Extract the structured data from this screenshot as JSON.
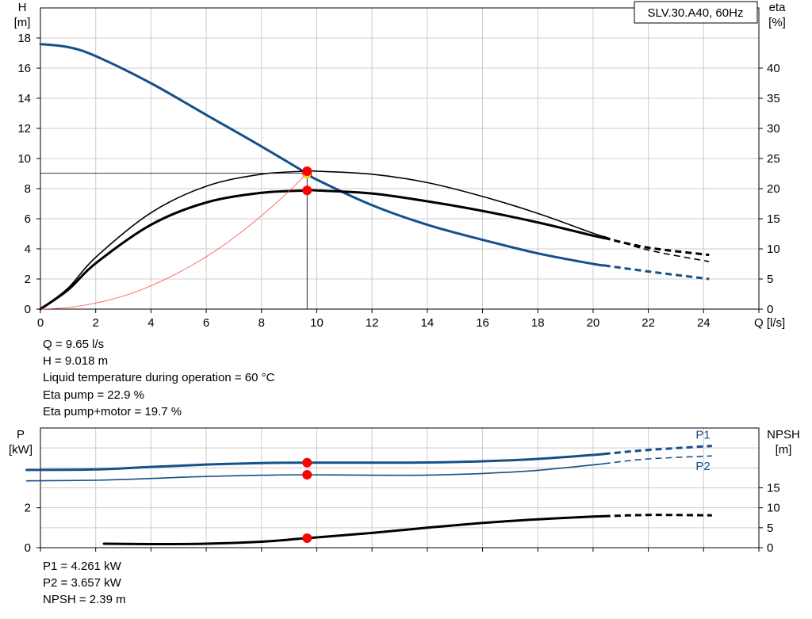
{
  "chart_data": [
    {
      "type": "line",
      "id": "performance",
      "legend": "SLV.30.A40, 60Hz",
      "xlabel": "Q [l/s]",
      "ylabel": [
        "H",
        "[m]"
      ],
      "y2label": [
        "eta",
        "[%]"
      ],
      "xlim": [
        0,
        26
      ],
      "ylim": [
        0,
        20
      ],
      "y2lim": [
        0,
        50
      ],
      "xticks": [
        0,
        2,
        4,
        6,
        8,
        10,
        12,
        14,
        16,
        18,
        20,
        22,
        24
      ],
      "yticks": [
        0,
        2,
        4,
        6,
        8,
        10,
        12,
        14,
        16,
        18
      ],
      "y2ticks": [
        0,
        5,
        10,
        15,
        20,
        25,
        30,
        35,
        40
      ],
      "grid": true,
      "series": [
        {
          "axis": "left",
          "color": "#15508a",
          "width": 3,
          "dash_from": 20.4,
          "points": [
            [
              0,
              17.6
            ],
            [
              1,
              17.4
            ],
            [
              2,
              16.8
            ],
            [
              4,
              15.0
            ],
            [
              6,
              12.9
            ],
            [
              8,
              10.8
            ],
            [
              9.65,
              9.0
            ],
            [
              10,
              8.6
            ],
            [
              12,
              6.9
            ],
            [
              14,
              5.6
            ],
            [
              16,
              4.6
            ],
            [
              18,
              3.7
            ],
            [
              20,
              3.0
            ],
            [
              22,
              2.5
            ],
            [
              24.2,
              2.0
            ]
          ]
        },
        {
          "axis": "right",
          "color": "#000000",
          "width": 1.6,
          "dash_from": 20.4,
          "points": [
            [
              0,
              0
            ],
            [
              1,
              3.5
            ],
            [
              2,
              8.6
            ],
            [
              4,
              16.0
            ],
            [
              6,
              20.4
            ],
            [
              8,
              22.4
            ],
            [
              9.65,
              22.9
            ],
            [
              10,
              22.9
            ],
            [
              12,
              22.4
            ],
            [
              14,
              21.0
            ],
            [
              16,
              18.7
            ],
            [
              18,
              15.9
            ],
            [
              20,
              12.6
            ],
            [
              22,
              9.8
            ],
            [
              24.2,
              7.9
            ]
          ]
        },
        {
          "axis": "right",
          "color": "#000000",
          "width": 3,
          "dash_from": 20.4,
          "points": [
            [
              0,
              0
            ],
            [
              1,
              3.2
            ],
            [
              2,
              7.6
            ],
            [
              4,
              14.0
            ],
            [
              6,
              17.7
            ],
            [
              8,
              19.3
            ],
            [
              9.65,
              19.7
            ],
            [
              10,
              19.7
            ],
            [
              12,
              19.2
            ],
            [
              14,
              17.9
            ],
            [
              16,
              16.3
            ],
            [
              18,
              14.4
            ],
            [
              20,
              12.2
            ],
            [
              22,
              10.2
            ],
            [
              24.2,
              9.0
            ]
          ]
        },
        {
          "axis": "left",
          "color": "#ff4a4a",
          "width": 0.8,
          "dash_from": null,
          "points": [
            [
              0,
              0
            ],
            [
              1,
              0.1
            ],
            [
              2,
              0.4
            ],
            [
              3,
              0.87
            ],
            [
              4,
              1.55
            ],
            [
              5,
              2.42
            ],
            [
              6,
              3.48
            ],
            [
              7,
              4.74
            ],
            [
              8,
              6.2
            ],
            [
              9,
              7.84
            ],
            [
              9.65,
              9.018
            ]
          ]
        }
      ],
      "guide_point": {
        "x": 9.65,
        "y": 9.018
      },
      "markers": [
        {
          "axis": "left",
          "x": 9.65,
          "y": 9.018
        },
        {
          "axis": "left",
          "x": 9.65,
          "y": 9.05
        },
        {
          "axis": "right",
          "x": 9.65,
          "y": 22.9
        },
        {
          "axis": "right",
          "x": 9.65,
          "y": 19.7
        }
      ]
    },
    {
      "type": "line",
      "id": "power",
      "ylabel": [
        "P",
        "[kW]"
      ],
      "y2label": [
        "NPSH",
        "[m]"
      ],
      "xlim": [
        0,
        26
      ],
      "ylim": [
        0,
        6
      ],
      "y2lim": [
        0,
        30
      ],
      "yticks": [
        0,
        2
      ],
      "y2ticks": [
        0,
        5,
        10,
        15
      ],
      "grid": true,
      "series": [
        {
          "name": "P1",
          "axis": "left",
          "color": "#15508a",
          "width": 3,
          "dash_from": 20.4,
          "points": [
            [
              -0.5,
              3.9
            ],
            [
              2,
              3.92
            ],
            [
              4,
              4.05
            ],
            [
              6,
              4.17
            ],
            [
              8,
              4.24
            ],
            [
              9.65,
              4.261
            ],
            [
              12,
              4.26
            ],
            [
              14,
              4.27
            ],
            [
              16,
              4.33
            ],
            [
              18,
              4.45
            ],
            [
              20,
              4.65
            ],
            [
              22,
              4.9
            ],
            [
              24.3,
              5.1
            ]
          ]
        },
        {
          "name": "P2",
          "axis": "left",
          "color": "#15508a",
          "width": 1.6,
          "dash_from": 20.4,
          "points": [
            [
              -0.5,
              3.35
            ],
            [
              2,
              3.38
            ],
            [
              4,
              3.47
            ],
            [
              6,
              3.57
            ],
            [
              8,
              3.63
            ],
            [
              9.65,
              3.657
            ],
            [
              12,
              3.63
            ],
            [
              14,
              3.64
            ],
            [
              16,
              3.72
            ],
            [
              18,
              3.88
            ],
            [
              20,
              4.15
            ],
            [
              22,
              4.45
            ],
            [
              24.3,
              4.6
            ]
          ]
        },
        {
          "name": "NPSH",
          "axis": "right",
          "color": "#000000",
          "width": 3,
          "dash_from": 20.4,
          "points": [
            [
              2.3,
              1.0
            ],
            [
              4,
              0.9
            ],
            [
              6,
              1.0
            ],
            [
              8,
              1.5
            ],
            [
              9.65,
              2.39
            ],
            [
              12,
              3.7
            ],
            [
              14,
              5.0
            ],
            [
              16,
              6.2
            ],
            [
              18,
              7.1
            ],
            [
              20,
              7.8
            ],
            [
              22,
              8.2
            ],
            [
              24.3,
              8.1
            ]
          ]
        }
      ],
      "markers": [
        {
          "axis": "left",
          "x": 9.65,
          "y": 4.261
        },
        {
          "axis": "left",
          "x": 9.65,
          "y": 3.657
        },
        {
          "axis": "right",
          "x": 9.65,
          "y": 2.39
        }
      ]
    }
  ],
  "colors": {
    "grid": "#cccccc",
    "marker": "#ff0000",
    "marker_inner": "#ffcc00",
    "guide": "#000000"
  },
  "duty_point": {
    "lines": [
      "Q = 9.65 l/s",
      "H = 9.018 m",
      "Liquid temperature during operation = 60 °C",
      "Eta pump = 22.9 %",
      "Eta pump+motor = 19.7 %"
    ]
  },
  "power_values": {
    "lines": [
      "P1 = 4.261 kW",
      "P2 = 3.657 kW",
      "NPSH = 2.39 m"
    ]
  }
}
